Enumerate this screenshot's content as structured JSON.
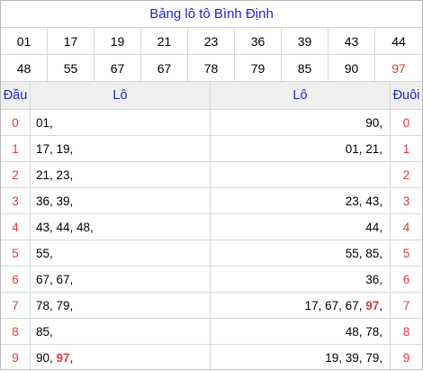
{
  "title": "Bảng lô tô Bình Định",
  "numbers": [
    "01",
    "17",
    "19",
    "21",
    "23",
    "36",
    "39",
    "43",
    "44",
    "48",
    "55",
    "67",
    "67",
    "78",
    "79",
    "85",
    "90",
    "97"
  ],
  "highlight_color": "#e03a3a",
  "accent_color": "#1a28c8",
  "header": {
    "dau": "Đầu",
    "lo_left": "Lô",
    "lo_right": "Lô",
    "duoi": "Đuôi"
  },
  "rows": [
    {
      "dau": "0",
      "left": [
        {
          "t": "01,"
        }
      ],
      "right": [
        {
          "t": "90,"
        }
      ],
      "duoi": "0"
    },
    {
      "dau": "1",
      "left": [
        {
          "t": "17, 19,"
        }
      ],
      "right": [
        {
          "t": "01, 21,"
        }
      ],
      "duoi": "1"
    },
    {
      "dau": "2",
      "left": [
        {
          "t": "21, 23,"
        }
      ],
      "right": [],
      "duoi": "2"
    },
    {
      "dau": "3",
      "left": [
        {
          "t": "36, 39,"
        }
      ],
      "right": [
        {
          "t": "23, 43,"
        }
      ],
      "duoi": "3"
    },
    {
      "dau": "4",
      "left": [
        {
          "t": "43, 44, 48,"
        }
      ],
      "right": [
        {
          "t": "44,"
        }
      ],
      "duoi": "4"
    },
    {
      "dau": "5",
      "left": [
        {
          "t": "55,"
        }
      ],
      "right": [
        {
          "t": "55, 85,"
        }
      ],
      "duoi": "5"
    },
    {
      "dau": "6",
      "left": [
        {
          "t": "67, 67,"
        }
      ],
      "right": [
        {
          "t": "36,"
        }
      ],
      "duoi": "6"
    },
    {
      "dau": "7",
      "left": [
        {
          "t": "78, 79,"
        }
      ],
      "right": [
        {
          "t": "17, 67, 67, "
        },
        {
          "t": "97",
          "hl": true
        },
        {
          "t": ","
        }
      ],
      "duoi": "7"
    },
    {
      "dau": "8",
      "left": [
        {
          "t": "85,"
        }
      ],
      "right": [
        {
          "t": "48, 78,"
        }
      ],
      "duoi": "8"
    },
    {
      "dau": "9",
      "left": [
        {
          "t": "90, "
        },
        {
          "t": "97",
          "hl": true
        },
        {
          "t": ","
        }
      ],
      "right": [
        {
          "t": "19, 39, 79,"
        }
      ],
      "duoi": "9"
    }
  ]
}
